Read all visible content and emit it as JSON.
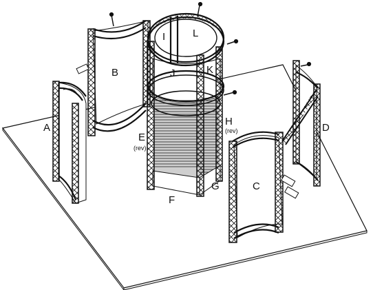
{
  "labels": {
    "a": "A",
    "b": "B",
    "c": "C",
    "d": "D",
    "e": "E",
    "e_note": "(rev)",
    "f": "F",
    "g": "G",
    "h": "H",
    "h_note": "(rev)",
    "i": "I",
    "j": "J",
    "k": "K",
    "l": "L"
  }
}
